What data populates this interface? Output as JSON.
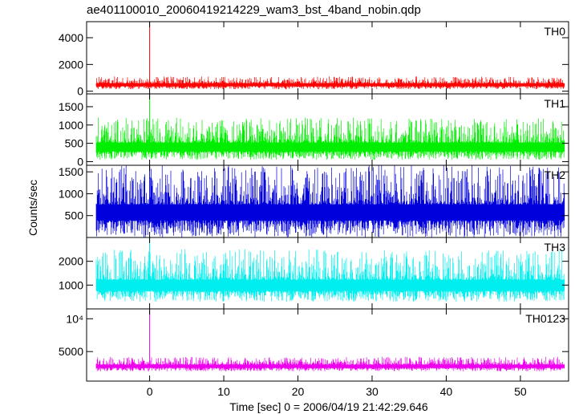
{
  "chart_data": {
    "type": "line",
    "title": "ae401100010_20060419214229_wam3_bst_4band_nobin.qdp",
    "xlabel": "Time [sec] 0 = 2006/04/19 21:42:29.646",
    "ylabel": "Counts/sec",
    "xlim": [
      -8.5,
      56.5
    ],
    "x_ticks": [
      0,
      10,
      20,
      30,
      40,
      50
    ],
    "x_tick_labels": [
      "0",
      "10",
      "20",
      "30",
      "40",
      "50"
    ],
    "grid": false,
    "panels": [
      {
        "name": "TH0",
        "color": "#ff0000",
        "ylim": [
          -200,
          5200
        ],
        "y_ticks": [
          0,
          2000,
          4000
        ],
        "y_tick_labels": [
          "0",
          "2000",
          "4000"
        ],
        "baseline_mean": 500,
        "noise_range": [
          150,
          1100
        ],
        "spike": {
          "x": 0.0,
          "y": 5200
        }
      },
      {
        "name": "TH1",
        "color": "#00ee00",
        "ylim": [
          -100,
          1850
        ],
        "y_ticks": [
          0,
          500,
          1000,
          1500
        ],
        "y_tick_labels": [
          "0",
          "500",
          "1000",
          "1500"
        ],
        "baseline_mean": 400,
        "noise_range": [
          50,
          1200
        ],
        "spike": {
          "x": 0.0,
          "y": 1850
        }
      },
      {
        "name": "TH2",
        "color": "#0000dd",
        "ylim": [
          0,
          1650
        ],
        "y_ticks": [
          500,
          1000,
          1500
        ],
        "y_tick_labels": [
          "500",
          "1000",
          "1500"
        ],
        "baseline_mean": 600,
        "noise_range": [
          0,
          1650
        ],
        "spike": {
          "x": 0.0,
          "y": 1650
        }
      },
      {
        "name": "TH3",
        "color": "#00eeee",
        "ylim": [
          0,
          3000
        ],
        "y_ticks": [
          1000,
          2000
        ],
        "y_tick_labels": [
          "1000",
          "2000"
        ],
        "baseline_mean": 1000,
        "noise_range": [
          300,
          2500
        ],
        "spike": {
          "x": 0.0,
          "y": 3000
        }
      },
      {
        "name": "TH0123",
        "color": "#ee00ee",
        "ylim": [
          500,
          11500
        ],
        "y_ticks": [
          5000,
          10000
        ],
        "y_tick_labels": [
          "5000",
          "10⁴"
        ],
        "baseline_mean": 2800,
        "noise_range": [
          2000,
          4200
        ],
        "spike": {
          "x": 0.0,
          "y": 11500
        }
      }
    ]
  }
}
